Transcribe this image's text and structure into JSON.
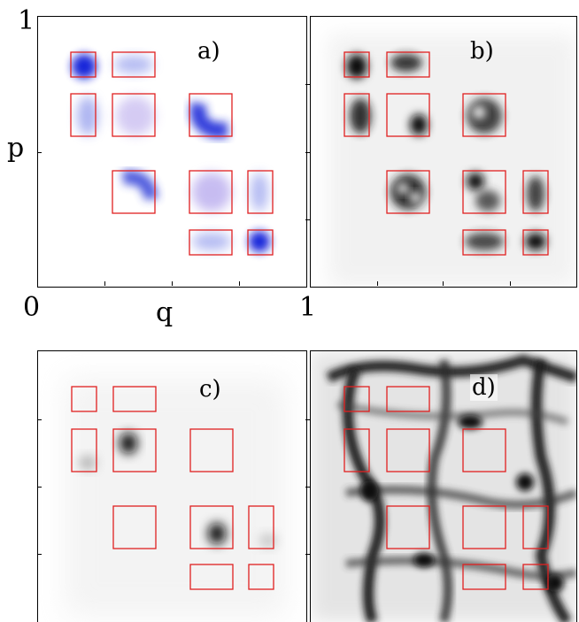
{
  "figure": {
    "panel_labels": [
      "a)",
      "b)",
      "c)",
      "d)"
    ],
    "axis": {
      "x_label": "q",
      "y_label": "p",
      "x_min": "0",
      "x_max": "1",
      "y_max": "1"
    },
    "box_color": "#e02020",
    "colormaps": {
      "a": "blue",
      "b": "gray",
      "c": "gray",
      "d": "gray"
    }
  }
}
